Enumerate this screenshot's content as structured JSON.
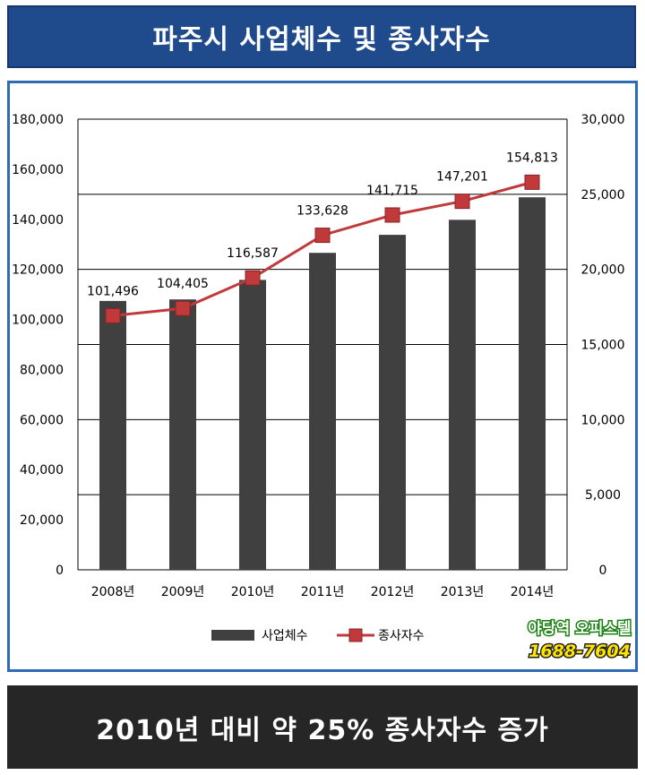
{
  "header": {
    "title": "파주시 사업체수 및 종사자수"
  },
  "footer": {
    "text": "2010년 대비 약 25% 종사자수 증가"
  },
  "watermark": {
    "line1": "야당역 오피스텔",
    "line2": "1688-7604"
  },
  "colors": {
    "title_bg": "#1f4a8c",
    "frame_border": "#2f6ab5",
    "bar": "#404040",
    "line": "#c0393b",
    "footer_bg": "#262626"
  },
  "chart_data": {
    "type": "bar",
    "categories": [
      "2008년",
      "2009년",
      "2010년",
      "2011년",
      "2012년",
      "2013년",
      "2014년"
    ],
    "series": [
      {
        "name": "사업체수",
        "type": "bar",
        "axis": "right",
        "values": [
          17900,
          18000,
          19300,
          21100,
          22300,
          23300,
          24800
        ]
      },
      {
        "name": "종사자수",
        "type": "line",
        "axis": "left",
        "values": [
          101496,
          104405,
          116587,
          133628,
          141715,
          147201,
          154813
        ],
        "labels": [
          "101,496",
          "104,405",
          "116,587",
          "133,628",
          "141,715",
          "147,201",
          "154,813"
        ]
      }
    ],
    "y_left": {
      "lim": [
        0,
        180000
      ],
      "ticks": [
        "0",
        "20,000",
        "40,000",
        "60,000",
        "80,000",
        "100,000",
        "120,000",
        "140,000",
        "160,000",
        "180,000"
      ]
    },
    "y_right": {
      "lim": [
        0,
        30000
      ],
      "ticks": [
        "0",
        "5,000",
        "10,000",
        "15,000",
        "20,000",
        "25,000",
        "30,000"
      ]
    },
    "grid": true,
    "legend": "bottom"
  }
}
